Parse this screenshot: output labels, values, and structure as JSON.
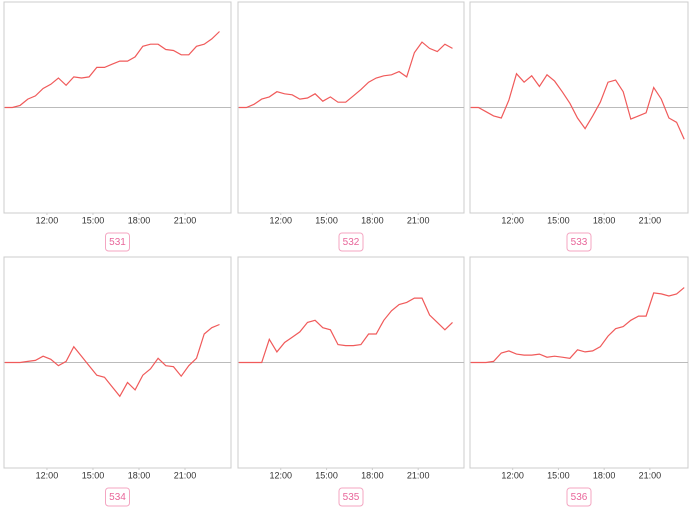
{
  "chart_data": [
    {
      "type": "line",
      "label": "531",
      "color": "#f05a5a",
      "xlim": [
        9.2,
        24
      ],
      "ylim": [
        -10,
        10
      ],
      "xticks": [
        {
          "value": 12,
          "label": "12:00"
        },
        {
          "value": 15,
          "label": "15:00"
        },
        {
          "value": 18,
          "label": "18:00"
        },
        {
          "value": 21,
          "label": "21:00"
        }
      ],
      "x": [
        9.25,
        9.75,
        10.25,
        10.75,
        11.25,
        11.75,
        12.25,
        12.75,
        13.25,
        13.75,
        14.25,
        14.75,
        15.25,
        15.75,
        16.25,
        16.75,
        17.25,
        17.75,
        18.25,
        18.75,
        19.25,
        19.75,
        20.25,
        20.75,
        21.25,
        21.75,
        22.25,
        22.75,
        23.25
      ],
      "values": [
        0,
        0,
        0.2,
        0.8,
        1.1,
        1.8,
        2.2,
        2.8,
        2.1,
        2.9,
        2.8,
        2.9,
        3.8,
        3.8,
        4.1,
        4.4,
        4.4,
        4.8,
        5.8,
        6,
        6,
        5.5,
        5.4,
        5,
        5,
        5.8,
        6,
        6.5,
        7.2
      ]
    },
    {
      "type": "line",
      "label": "532",
      "color": "#f05a5a",
      "xlim": [
        9.2,
        24
      ],
      "ylim": [
        -10,
        10
      ],
      "xticks": [
        {
          "value": 12,
          "label": "12:00"
        },
        {
          "value": 15,
          "label": "15:00"
        },
        {
          "value": 18,
          "label": "18:00"
        },
        {
          "value": 21,
          "label": "21:00"
        }
      ],
      "x": [
        9.25,
        9.75,
        10.25,
        10.75,
        11.25,
        11.75,
        12.25,
        12.75,
        13.25,
        13.75,
        14.25,
        14.75,
        15.25,
        15.75,
        16.25,
        16.75,
        17.25,
        17.75,
        18.25,
        18.75,
        19.25,
        19.75,
        20.25,
        20.75,
        21.25,
        21.75,
        22.25,
        22.75,
        23.25
      ],
      "values": [
        0,
        0,
        0.3,
        0.8,
        1,
        1.5,
        1.3,
        1.2,
        0.8,
        0.9,
        1.3,
        0.6,
        1,
        0.5,
        0.5,
        1.1,
        1.7,
        2.4,
        2.8,
        3,
        3.1,
        3.4,
        2.9,
        5.2,
        6.2,
        5.6,
        5.3,
        6,
        5.6
      ]
    },
    {
      "type": "line",
      "label": "533",
      "color": "#f05a5a",
      "xlim": [
        9.2,
        23.5
      ],
      "ylim": [
        -10,
        10
      ],
      "xticks": [
        {
          "value": 12,
          "label": "12:00"
        },
        {
          "value": 15,
          "label": "15:00"
        },
        {
          "value": 18,
          "label": "18:00"
        },
        {
          "value": 21,
          "label": "21:00"
        }
      ],
      "x": [
        9.25,
        9.75,
        10.25,
        10.75,
        11.25,
        11.75,
        12.25,
        12.75,
        13.25,
        13.75,
        14.25,
        14.75,
        15.25,
        15.75,
        16.25,
        16.75,
        17.25,
        17.75,
        18.25,
        18.75,
        19.25,
        19.75,
        20.25,
        20.75,
        21.25,
        21.75,
        22.25,
        22.75,
        23.25
      ],
      "values": [
        0,
        0,
        -0.4,
        -0.8,
        -1,
        0.7,
        3.2,
        2.4,
        3,
        2,
        3.1,
        2.5,
        1.5,
        0.4,
        -1,
        -2,
        -0.8,
        0.5,
        2.4,
        2.6,
        1.5,
        -1.1,
        -0.8,
        -0.5,
        1.9,
        0.8,
        -1,
        -1.4,
        -3
      ]
    },
    {
      "type": "line",
      "label": "534",
      "color": "#f05a5a",
      "xlim": [
        9.2,
        24
      ],
      "ylim": [
        -10,
        10
      ],
      "xticks": [
        {
          "value": 12,
          "label": "12:00"
        },
        {
          "value": 15,
          "label": "15:00"
        },
        {
          "value": 18,
          "label": "18:00"
        },
        {
          "value": 21,
          "label": "21:00"
        }
      ],
      "x": [
        9.25,
        9.75,
        10.25,
        10.75,
        11.25,
        11.75,
        12.25,
        12.75,
        13.25,
        13.75,
        14.25,
        14.75,
        15.25,
        15.75,
        16.25,
        16.75,
        17.25,
        17.75,
        18.25,
        18.75,
        19.25,
        19.75,
        20.25,
        20.75,
        21.25,
        21.75,
        22.25,
        22.75,
        23.25
      ],
      "values": [
        0,
        0,
        0,
        0.1,
        0.2,
        0.6,
        0.3,
        -0.3,
        0.1,
        1.5,
        0.6,
        -0.3,
        -1.2,
        -1.4,
        -2.3,
        -3.2,
        -1.9,
        -2.6,
        -1.2,
        -0.6,
        0.4,
        -0.3,
        -0.4,
        -1.3,
        -0.3,
        0.4,
        2.7,
        3.3,
        3.6
      ]
    },
    {
      "type": "line",
      "label": "535",
      "color": "#f05a5a",
      "xlim": [
        9.2,
        24
      ],
      "ylim": [
        -10,
        10
      ],
      "xticks": [
        {
          "value": 12,
          "label": "12:00"
        },
        {
          "value": 15,
          "label": "15:00"
        },
        {
          "value": 18,
          "label": "18:00"
        },
        {
          "value": 21,
          "label": "21:00"
        }
      ],
      "x": [
        9.25,
        9.75,
        10.25,
        10.75,
        11.25,
        11.75,
        12.25,
        12.75,
        13.25,
        13.75,
        14.25,
        14.75,
        15.25,
        15.75,
        16.25,
        16.75,
        17.25,
        17.75,
        18.25,
        18.75,
        19.25,
        19.75,
        20.25,
        20.75,
        21.25,
        21.75,
        22.25,
        22.75,
        23.25
      ],
      "values": [
        0,
        0,
        0,
        0,
        2.2,
        1,
        1.9,
        2.4,
        2.9,
        3.8,
        4,
        3.3,
        3.1,
        1.7,
        1.6,
        1.6,
        1.7,
        2.7,
        2.7,
        4,
        4.9,
        5.5,
        5.7,
        6.1,
        6.1,
        4.5,
        3.8,
        3.1,
        3.8
      ]
    },
    {
      "type": "line",
      "label": "536",
      "color": "#f05a5a",
      "xlim": [
        9.2,
        23.5
      ],
      "ylim": [
        -10,
        10
      ],
      "xticks": [
        {
          "value": 12,
          "label": "12:00"
        },
        {
          "value": 15,
          "label": "15:00"
        },
        {
          "value": 18,
          "label": "18:00"
        },
        {
          "value": 21,
          "label": "21:00"
        }
      ],
      "x": [
        9.25,
        9.75,
        10.25,
        10.75,
        11.25,
        11.75,
        12.25,
        12.75,
        13.25,
        13.75,
        14.25,
        14.75,
        15.25,
        15.75,
        16.25,
        16.75,
        17.25,
        17.75,
        18.25,
        18.75,
        19.25,
        19.75,
        20.25,
        20.75,
        21.25,
        21.75,
        22.25,
        22.75,
        23.25
      ],
      "values": [
        0,
        0,
        0,
        0.1,
        0.9,
        1.1,
        0.8,
        0.7,
        0.7,
        0.8,
        0.5,
        0.6,
        0.5,
        0.4,
        1.2,
        1,
        1.1,
        1.5,
        2.5,
        3.2,
        3.4,
        4,
        4.4,
        4.4,
        6.6,
        6.5,
        6.3,
        6.5,
        7.1
      ]
    }
  ]
}
